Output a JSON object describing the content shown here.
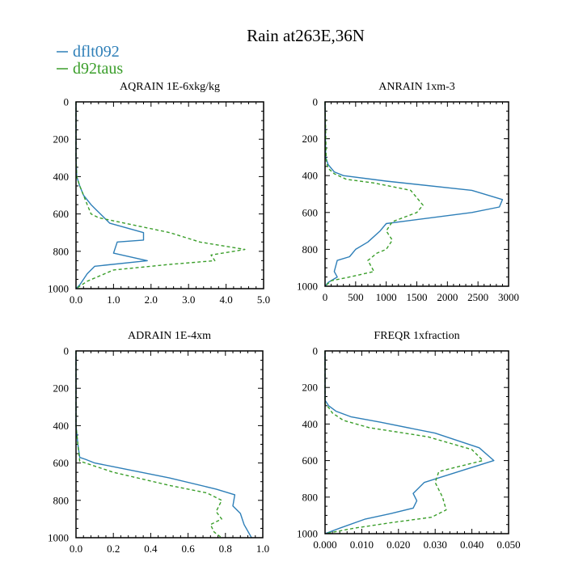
{
  "figure": {
    "title": "Rain at263E,36N",
    "legend": [
      {
        "label": "dflt092",
        "color": "#2e7fb8",
        "style": "solid"
      },
      {
        "label": "d92taus",
        "color": "#3a9e2a",
        "style": "dashed"
      }
    ]
  },
  "chart_data": [
    {
      "type": "line",
      "title": "AQRAIN  1E-6xkg/kg",
      "xlim": [
        0,
        5
      ],
      "xticks": [
        "0.0",
        "1.0",
        "2.0",
        "3.0",
        "4.0",
        "5.0"
      ],
      "ylim": [
        1000,
        0
      ],
      "yticks": [
        "0",
        "200",
        "400",
        "600",
        "800",
        "1000"
      ],
      "series": [
        {
          "name": "dflt092",
          "color": "#2e7fb8",
          "dash": "",
          "x": [
            0,
            0,
            0.02,
            0.1,
            0.2,
            0.4,
            0.5,
            0.9,
            1.8,
            1.8,
            1.1,
            1.0,
            1.9,
            0.5,
            0.3,
            0.1,
            0
          ],
          "y": [
            0,
            300,
            400,
            450,
            500,
            550,
            570,
            650,
            700,
            740,
            750,
            810,
            850,
            880,
            920,
            980,
            1000
          ]
        },
        {
          "name": "d92taus",
          "color": "#3a9e2a",
          "dash": "4,3",
          "x": [
            0,
            0,
            0.02,
            0.1,
            0.2,
            0.3,
            0.4,
            0.6,
            2.5,
            3.3,
            4.5,
            3.6,
            3.7,
            2.5,
            1.0,
            0.3,
            0
          ],
          "y": [
            0,
            300,
            400,
            450,
            500,
            550,
            600,
            620,
            700,
            750,
            790,
            820,
            850,
            870,
            900,
            960,
            1000
          ]
        }
      ]
    },
    {
      "type": "line",
      "title": "ANRAIN  1xm-3",
      "xlim": [
        0,
        3000
      ],
      "xticks": [
        "0",
        "500",
        "1000",
        "1500",
        "2000",
        "2500",
        "3000"
      ],
      "ylim": [
        1000,
        0
      ],
      "yticks": [
        "0",
        "200",
        "400",
        "600",
        "800",
        "1000"
      ],
      "series": [
        {
          "name": "dflt092",
          "color": "#2e7fb8",
          "dash": "",
          "x": [
            0,
            10,
            50,
            150,
            300,
            1000,
            2400,
            2900,
            2850,
            2400,
            1000,
            900,
            700,
            500,
            400,
            200,
            150,
            200,
            50,
            0
          ],
          "y": [
            0,
            300,
            340,
            380,
            400,
            430,
            480,
            530,
            570,
            600,
            660,
            700,
            760,
            800,
            840,
            860,
            920,
            950,
            980,
            1000
          ]
        },
        {
          "name": "d92taus",
          "color": "#3a9e2a",
          "dash": "4,3",
          "x": [
            0,
            20,
            50,
            150,
            350,
            800,
            1400,
            1600,
            1500,
            1100,
            1000,
            1100,
            1000,
            850,
            700,
            800,
            400,
            100,
            0
          ],
          "y": [
            0,
            320,
            360,
            390,
            420,
            440,
            480,
            560,
            600,
            650,
            700,
            750,
            800,
            820,
            860,
            920,
            950,
            970,
            1000
          ]
        }
      ]
    },
    {
      "type": "line",
      "title": "ADRAIN  1E-4xm",
      "xlim": [
        0,
        1.0
      ],
      "xticks": [
        "0.0",
        "0.2",
        "0.4",
        "0.6",
        "0.8",
        "1.0"
      ],
      "ylim": [
        1000,
        0
      ],
      "yticks": [
        "0",
        "200",
        "400",
        "600",
        "800",
        "1000"
      ],
      "series": [
        {
          "name": "dflt092",
          "color": "#2e7fb8",
          "dash": "",
          "x": [
            0,
            0,
            0.01,
            0.02,
            0.05,
            0.1,
            0.2,
            0.5,
            0.75,
            0.85,
            0.84,
            0.88,
            0.9,
            0.94
          ],
          "y": [
            0,
            400,
            500,
            570,
            580,
            600,
            620,
            680,
            740,
            770,
            830,
            870,
            930,
            1000
          ]
        },
        {
          "name": "d92taus",
          "color": "#3a9e2a",
          "dash": "4,3",
          "x": [
            0,
            0,
            0.01,
            0.02,
            0.05,
            0.08,
            0.2,
            0.5,
            0.7,
            0.78,
            0.75,
            0.78,
            0.72,
            0.74,
            0.78
          ],
          "y": [
            0,
            400,
            500,
            590,
            600,
            610,
            650,
            720,
            760,
            800,
            860,
            900,
            930,
            970,
            1000
          ]
        }
      ]
    },
    {
      "type": "line",
      "title": "FREQR  1xfraction",
      "xlim": [
        0,
        0.05
      ],
      "xticks": [
        "0.000",
        "0.010",
        "0.020",
        "0.030",
        "0.040",
        "0.050"
      ],
      "ylim": [
        1000,
        0
      ],
      "yticks": [
        "0",
        "200",
        "400",
        "600",
        "800",
        "1000"
      ],
      "series": [
        {
          "name": "dflt092",
          "color": "#2e7fb8",
          "dash": "",
          "x": [
            0,
            0,
            0.001,
            0.003,
            0.007,
            0.015,
            0.03,
            0.042,
            0.046,
            0.038,
            0.027,
            0.024,
            0.025,
            0.024,
            0.018,
            0.011,
            0.004,
            0
          ],
          "y": [
            0,
            270,
            300,
            330,
            360,
            390,
            450,
            530,
            600,
            650,
            720,
            780,
            820,
            860,
            890,
            920,
            970,
            1000
          ]
        },
        {
          "name": "d92taus",
          "color": "#3a9e2a",
          "dash": "4,3",
          "x": [
            0,
            0,
            0.001,
            0.002,
            0.005,
            0.012,
            0.028,
            0.04,
            0.043,
            0.035,
            0.031,
            0.03,
            0.032,
            0.033,
            0.029,
            0.018,
            0.008,
            0
          ],
          "y": [
            0,
            290,
            310,
            340,
            380,
            420,
            470,
            540,
            600,
            640,
            660,
            720,
            800,
            870,
            910,
            940,
            970,
            1000
          ]
        }
      ]
    }
  ]
}
